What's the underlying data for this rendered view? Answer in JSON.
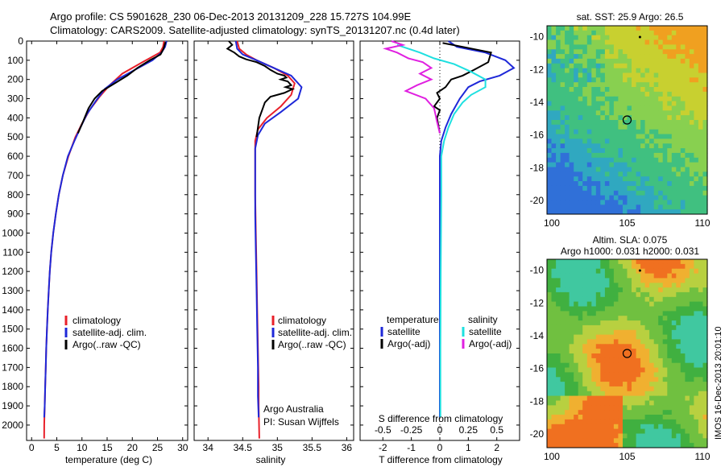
{
  "header": {
    "line1": "Argo profile: CS 5901628_230 06-Dec-2013 20131209_228 15.727S 104.99E",
    "line2": "Climatology: CARS2009. Satellite-adjusted climatology: synTS_20131207.nc (0.4d later)"
  },
  "colors": {
    "red": "#e8202a",
    "blue": "#1e28d8",
    "black": "#000000",
    "cyan": "#1ee0e0",
    "magenta": "#e020e0"
  },
  "chart_data": [
    {
      "type": "line",
      "name": "temperature-profile",
      "xlabel": "temperature (deg C)",
      "ylim": [
        0,
        2080
      ],
      "xlim": [
        -1,
        31
      ],
      "xticks": [
        0,
        5,
        10,
        15,
        20,
        25,
        30
      ],
      "yticks": [
        0,
        100,
        200,
        300,
        400,
        500,
        600,
        700,
        800,
        900,
        1000,
        1100,
        1200,
        1300,
        1400,
        1500,
        1600,
        1700,
        1800,
        1900,
        2000
      ],
      "legend": [
        "climatology",
        "satellite-adj. clim.",
        "Argo(..raw -QC)"
      ],
      "series": [
        {
          "name": "climatology",
          "color": "red",
          "points": [
            [
              26.3,
              0
            ],
            [
              26.1,
              30
            ],
            [
              25.5,
              60
            ],
            [
              22,
              110
            ],
            [
              18,
              170
            ],
            [
              15.5,
              230
            ],
            [
              13.5,
              290
            ],
            [
              11.5,
              360
            ],
            [
              10,
              430
            ],
            [
              8.7,
              500
            ],
            [
              7.3,
              600
            ],
            [
              6.2,
              700
            ],
            [
              5.4,
              800
            ],
            [
              4.8,
              900
            ],
            [
              4.3,
              1000
            ],
            [
              3.9,
              1100
            ],
            [
              3.6,
              1200
            ],
            [
              3.4,
              1300
            ],
            [
              3.2,
              1400
            ],
            [
              3.05,
              1500
            ],
            [
              2.9,
              1600
            ],
            [
              2.8,
              1700
            ],
            [
              2.7,
              1800
            ],
            [
              2.6,
              1900
            ],
            [
              2.5,
              2000
            ],
            [
              2.48,
              2070
            ]
          ]
        },
        {
          "name": "satellite-adj. clim.",
          "color": "blue",
          "points": [
            [
              26.8,
              0
            ],
            [
              26.5,
              30
            ],
            [
              25.8,
              60
            ],
            [
              24,
              100
            ],
            [
              20.5,
              150
            ],
            [
              17,
              200
            ],
            [
              14.5,
              250
            ],
            [
              12.8,
              310
            ],
            [
              11,
              380
            ],
            [
              9.7,
              450
            ],
            [
              8.5,
              520
            ],
            [
              7.2,
              600
            ],
            [
              6.2,
              700
            ],
            [
              5.4,
              800
            ],
            [
              4.8,
              900
            ],
            [
              4.3,
              1000
            ],
            [
              3.9,
              1100
            ],
            [
              3.6,
              1200
            ],
            [
              3.4,
              1300
            ],
            [
              3.2,
              1400
            ],
            [
              3.05,
              1500
            ],
            [
              2.9,
              1600
            ],
            [
              2.8,
              1700
            ],
            [
              2.7,
              1800
            ],
            [
              2.6,
              1900
            ],
            [
              2.5,
              1960
            ]
          ]
        },
        {
          "name": "Argo(..raw -QC)",
          "color": "black",
          "points": [
            [
              26.6,
              5
            ],
            [
              26.2,
              40
            ],
            [
              25.6,
              70
            ],
            [
              23.5,
              100
            ],
            [
              21,
              140
            ],
            [
              19,
              180
            ],
            [
              16.5,
              220
            ],
            [
              14,
              260
            ],
            [
              12.5,
              300
            ],
            [
              11.3,
              350
            ],
            [
              10.2,
              420
            ],
            [
              9.2,
              480
            ]
          ]
        }
      ]
    },
    {
      "type": "line",
      "name": "salinity-profile",
      "xlabel": "salinity",
      "ylim": [
        0,
        2080
      ],
      "xlim": [
        33.8,
        36.1
      ],
      "xticks": [
        34,
        34.5,
        35,
        35.5,
        36
      ],
      "legend": [
        "climatology",
        "satellite-adj. clim.",
        "Argo(..raw -QC)"
      ],
      "annotation": [
        "Argo Australia",
        "PI: Susan Wijffels"
      ],
      "series": [
        {
          "name": "climatology",
          "color": "red",
          "points": [
            [
              34.42,
              0
            ],
            [
              34.45,
              40
            ],
            [
              34.55,
              70
            ],
            [
              34.7,
              100
            ],
            [
              34.95,
              140
            ],
            [
              35.15,
              180
            ],
            [
              35.25,
              220
            ],
            [
              35.2,
              280
            ],
            [
              35.05,
              340
            ],
            [
              34.85,
              400
            ],
            [
              34.72,
              460
            ],
            [
              34.68,
              520
            ],
            [
              34.68,
              600
            ],
            [
              34.68,
              800
            ],
            [
              34.69,
              1000
            ],
            [
              34.7,
              1200
            ],
            [
              34.71,
              1400
            ],
            [
              34.72,
              1600
            ],
            [
              34.73,
              1800
            ],
            [
              34.73,
              1900
            ],
            [
              34.74,
              2070
            ]
          ]
        },
        {
          "name": "satellite-adj. clim.",
          "color": "blue",
          "points": [
            [
              34.4,
              0
            ],
            [
              34.42,
              40
            ],
            [
              34.5,
              70
            ],
            [
              34.7,
              100
            ],
            [
              34.95,
              140
            ],
            [
              35.2,
              180
            ],
            [
              35.35,
              240
            ],
            [
              35.3,
              300
            ],
            [
              35.05,
              370
            ],
            [
              34.82,
              430
            ],
            [
              34.72,
              490
            ],
            [
              34.68,
              560
            ],
            [
              34.68,
              700
            ],
            [
              34.68,
              900
            ],
            [
              34.69,
              1100
            ],
            [
              34.7,
              1300
            ],
            [
              34.71,
              1500
            ],
            [
              34.72,
              1700
            ],
            [
              34.72,
              1850
            ],
            [
              34.73,
              1960
            ]
          ]
        },
        {
          "name": "Argo(..raw -QC)",
          "color": "black",
          "points": [
            [
              34.3,
              0
            ],
            [
              34.35,
              20
            ],
            [
              34.28,
              40
            ],
            [
              34.38,
              60
            ],
            [
              34.45,
              80
            ],
            [
              34.55,
              95
            ],
            [
              34.7,
              110
            ],
            [
              34.82,
              130
            ],
            [
              34.9,
              150
            ],
            [
              35.0,
              170
            ],
            [
              35.1,
              180
            ],
            [
              35.13,
              190
            ],
            [
              35.05,
              200
            ],
            [
              35.15,
              210
            ],
            [
              35.2,
              230
            ],
            [
              35.12,
              240
            ],
            [
              35.22,
              250
            ],
            [
              35.1,
              270
            ],
            [
              34.9,
              290
            ],
            [
              34.82,
              320
            ],
            [
              34.78,
              360
            ],
            [
              34.74,
              400
            ],
            [
              34.72,
              450
            ],
            [
              34.7,
              500
            ]
          ]
        }
      ]
    },
    {
      "type": "line",
      "name": "difference-profile",
      "xlabel": "T difference from climatology",
      "x2label": "S difference from climatology",
      "ylim": [
        0,
        2080
      ],
      "xlim": [
        -2.8,
        2.8
      ],
      "xticks": [
        -2,
        -1,
        0,
        1,
        2
      ],
      "x2ticks_labels": [
        "-0.5",
        "-0.25",
        "0",
        "0.25",
        "0.5"
      ],
      "x2ticks": [
        -2,
        -1,
        0,
        1,
        2
      ],
      "legend_temperature_title": "temperature",
      "legend_salinity_title": "salinity",
      "legend": [
        "satellite",
        "Argo(-adj)",
        "satellite",
        "Argo(-adj)"
      ],
      "series": [
        {
          "name": "T satellite",
          "color": "blue",
          "points": [
            [
              0.3,
              0
            ],
            [
              0.6,
              30
            ],
            [
              1.6,
              60
            ],
            [
              2.3,
              100
            ],
            [
              2.6,
              140
            ],
            [
              2.1,
              180
            ],
            [
              1.4,
              210
            ],
            [
              1.0,
              240
            ],
            [
              0.7,
              300
            ],
            [
              0.4,
              380
            ],
            [
              0.2,
              450
            ],
            [
              0.05,
              520
            ],
            [
              0,
              600
            ],
            [
              0,
              800
            ],
            [
              0,
              1000
            ],
            [
              0,
              1500
            ],
            [
              0,
              1960
            ]
          ]
        },
        {
          "name": "T Argo(-adj)",
          "color": "black",
          "points": [
            [
              0.1,
              10
            ],
            [
              0.8,
              30
            ],
            [
              1.8,
              60
            ],
            [
              1.7,
              110
            ],
            [
              1.2,
              150
            ],
            [
              0.8,
              180
            ],
            [
              0.4,
              200
            ],
            [
              0.2,
              240
            ],
            [
              -0.1,
              270
            ],
            [
              0,
              300
            ],
            [
              -0.2,
              340
            ],
            [
              0.0,
              360
            ],
            [
              -0.1,
              400
            ],
            [
              0,
              480
            ]
          ]
        },
        {
          "name": "S satellite",
          "color": "cyan",
          "points": [
            [
              -1.5,
              20
            ],
            [
              -0.7,
              60
            ],
            [
              -0.2,
              90
            ],
            [
              0.5,
              120
            ],
            [
              1.1,
              160
            ],
            [
              1.6,
              200
            ],
            [
              1.6,
              240
            ],
            [
              1.1,
              280
            ],
            [
              0.8,
              320
            ],
            [
              0.5,
              380
            ],
            [
              0.3,
              450
            ],
            [
              0.15,
              520
            ],
            [
              0.05,
              600
            ],
            [
              0.05,
              800
            ],
            [
              0.03,
              1200
            ],
            [
              0.02,
              1600
            ],
            [
              0.02,
              1960
            ]
          ]
        },
        {
          "name": "S Argo(-adj)",
          "color": "magenta",
          "points": [
            [
              -1.7,
              0
            ],
            [
              -1.3,
              20
            ],
            [
              -1.9,
              40
            ],
            [
              -1.5,
              60
            ],
            [
              -1.1,
              90
            ],
            [
              -0.6,
              110
            ],
            [
              -0.3,
              140
            ],
            [
              -0.7,
              170
            ],
            [
              -0.3,
              200
            ],
            [
              -0.8,
              230
            ],
            [
              -1.2,
              260
            ],
            [
              -0.5,
              300
            ],
            [
              -0.2,
              350
            ],
            [
              -0.1,
              420
            ],
            [
              0,
              480
            ]
          ]
        }
      ]
    }
  ],
  "maps": [
    {
      "name": "sst-map",
      "title": "sat. SST: 25.9 Argo: 26.5",
      "title2": "",
      "xticks": [
        "100",
        "105",
        "110"
      ],
      "yticks": [
        "-10",
        "-12",
        "-14",
        "-16",
        "-18",
        "-20"
      ]
    },
    {
      "name": "sla-map",
      "title": "Altim. SLA: 0.075",
      "title2": "Argo h1000: 0.031 h2000: 0.031",
      "xticks": [
        "100",
        "105",
        "110"
      ],
      "yticks": [
        "-10",
        "-12",
        "-14",
        "-16",
        "-18",
        "-20"
      ]
    }
  ],
  "credit": "IMOS 16-Dec-2013 20:01:10"
}
